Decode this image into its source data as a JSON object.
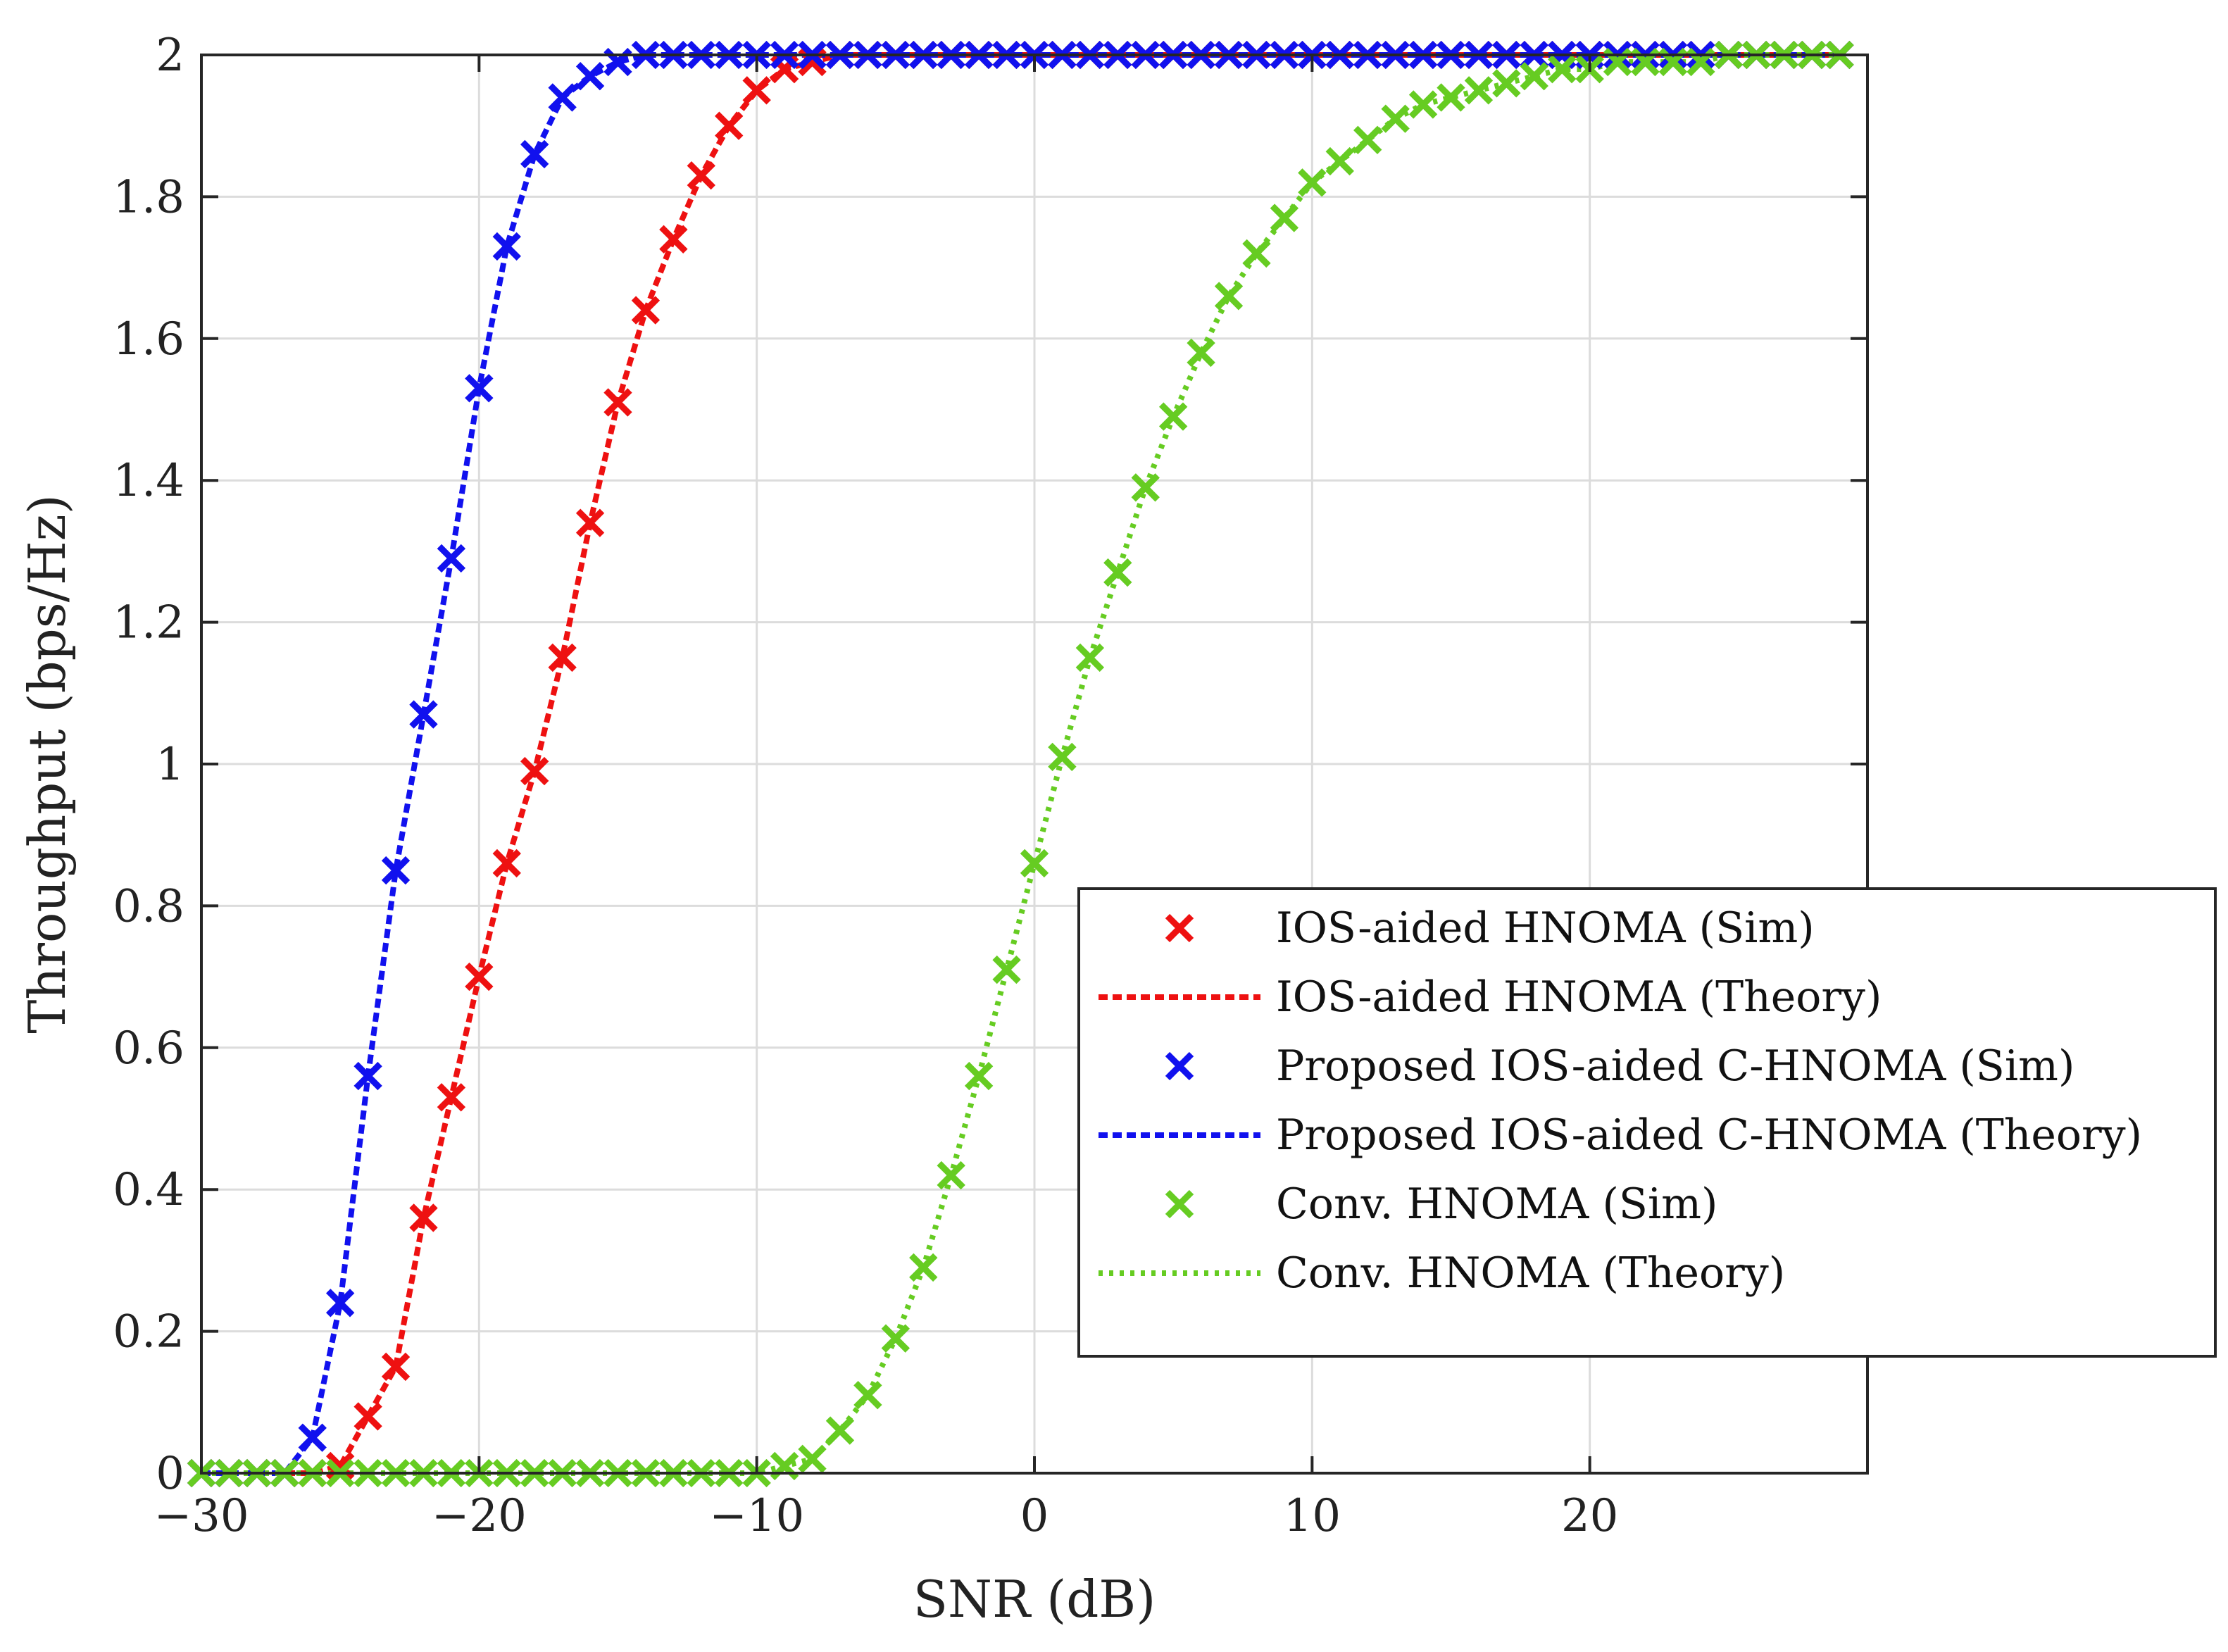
{
  "chart_data": {
    "type": "line",
    "title": "",
    "xlabel": "SNR (dB)",
    "ylabel": "Throughput (bps/Hz)",
    "xlim": [
      -30,
      30
    ],
    "ylim": [
      0,
      2
    ],
    "xticks": [
      -30,
      -20,
      -10,
      0,
      10,
      20
    ],
    "xtick_labels": [
      "−30",
      "−20",
      "−10",
      "0",
      "10",
      "20"
    ],
    "yticks": [
      0,
      0.2,
      0.4,
      0.6,
      0.8,
      1,
      1.2,
      1.4,
      1.6,
      1.8,
      2
    ],
    "ytick_labels": [
      "0",
      "0.2",
      "0.4",
      "0.6",
      "0.8",
      "1",
      "1.2",
      "1.4",
      "1.6",
      "1.8",
      "2"
    ],
    "grid": true,
    "legend_position": "lower-right",
    "x": [
      -30,
      -29,
      -28,
      -27,
      -26,
      -25,
      -24,
      -23,
      -22,
      -21,
      -20,
      -19,
      -18,
      -17,
      -16,
      -15,
      -14,
      -13,
      -12,
      -11,
      -10,
      -9,
      -8,
      -7,
      -6,
      -5,
      -4,
      -3,
      -2,
      -1,
      0,
      1,
      2,
      3,
      4,
      5,
      6,
      7,
      8,
      9,
      10,
      11,
      12,
      13,
      14,
      15,
      16,
      17,
      18,
      19,
      20,
      21,
      22,
      23,
      24,
      25,
      26,
      27,
      28,
      29
    ],
    "series": [
      {
        "name": "IOS-aided HNOMA",
        "sim_label": "IOS-aided HNOMA (Sim)",
        "theory_label": "IOS-aided HNOMA (Theory)",
        "color": "#ee1111",
        "line_style": "dashed",
        "values": [
          0,
          0,
          0,
          0,
          0,
          0.01,
          0.08,
          0.15,
          0.36,
          0.53,
          0.7,
          0.86,
          0.99,
          1.15,
          1.34,
          1.51,
          1.64,
          1.74,
          1.83,
          1.9,
          1.95,
          1.98,
          1.99,
          2,
          2,
          2,
          2,
          2,
          2,
          2,
          2,
          2,
          2,
          2,
          2,
          2,
          2,
          2,
          2,
          2,
          2,
          2,
          2,
          2,
          2,
          2,
          2,
          2,
          2,
          2,
          2,
          2,
          2,
          2,
          2,
          2,
          2,
          2,
          2,
          2
        ]
      },
      {
        "name": "Proposed IOS-aided C-HNOMA",
        "sim_label": "Proposed IOS-aided C-HNOMA (Sim)",
        "theory_label": "Proposed IOS-aided C-HNOMA (Theory)",
        "color": "#1111ee",
        "line_style": "dashed",
        "values": [
          0,
          0,
          0,
          0,
          0.05,
          0.24,
          0.56,
          0.85,
          1.07,
          1.29,
          1.53,
          1.73,
          1.86,
          1.94,
          1.97,
          1.99,
          2,
          2,
          2,
          2,
          2,
          2,
          2,
          2,
          2,
          2,
          2,
          2,
          2,
          2,
          2,
          2,
          2,
          2,
          2,
          2,
          2,
          2,
          2,
          2,
          2,
          2,
          2,
          2,
          2,
          2,
          2,
          2,
          2,
          2,
          2,
          2,
          2,
          2,
          2,
          2,
          2,
          2,
          2,
          2
        ]
      },
      {
        "name": "Conv. HNOMA",
        "sim_label": "Conv. HNOMA (Sim)",
        "theory_label": "Conv. HNOMA (Theory)",
        "color": "#66cc22",
        "line_style": "dotted",
        "values": [
          0,
          0,
          0,
          0,
          0,
          0,
          0,
          0,
          0,
          0,
          0,
          0,
          0,
          0,
          0,
          0,
          0,
          0,
          0,
          0,
          0,
          0.01,
          0.02,
          0.06,
          0.11,
          0.19,
          0.29,
          0.42,
          0.56,
          0.71,
          0.86,
          1.01,
          1.15,
          1.27,
          1.39,
          1.49,
          1.58,
          1.66,
          1.72,
          1.77,
          1.82,
          1.85,
          1.88,
          1.91,
          1.93,
          1.94,
          1.95,
          1.96,
          1.97,
          1.98,
          1.98,
          1.99,
          1.99,
          1.99,
          1.99,
          2,
          2,
          2,
          2,
          2
        ]
      }
    ]
  }
}
